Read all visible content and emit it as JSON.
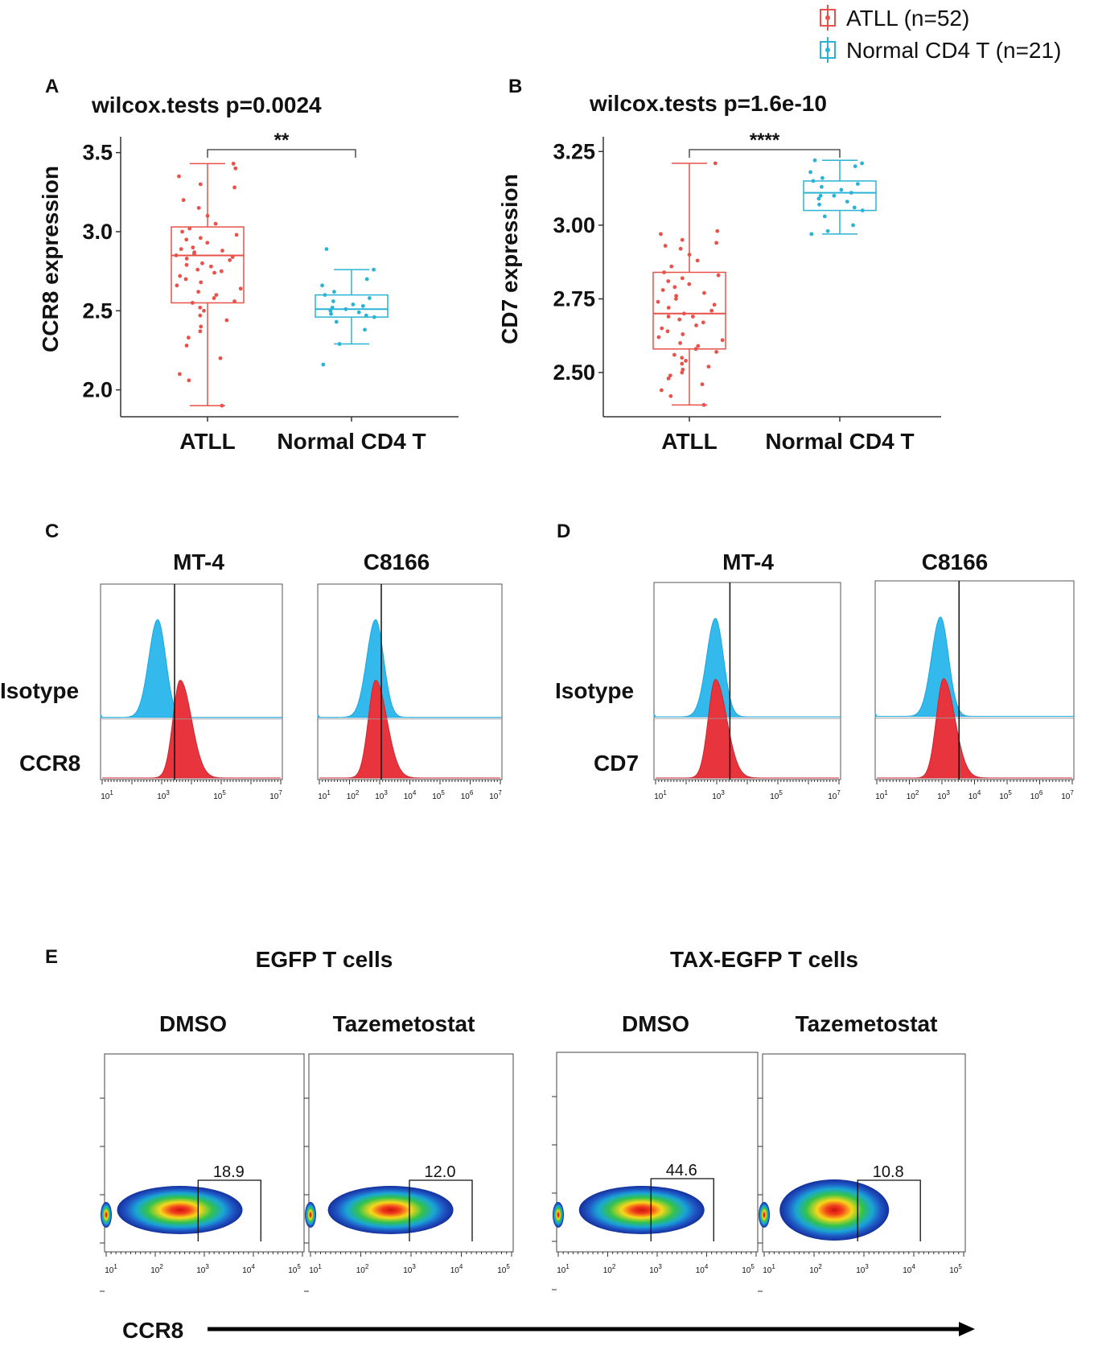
{
  "colors": {
    "atll": "#E8524A",
    "normal": "#2AB3D4",
    "iso": "#33B9EC",
    "ccr": "#E8343D",
    "axis": "#333333",
    "gate": "#111111"
  },
  "legend": [
    {
      "label": "ATLL (n=52)",
      "color": "#E8524A"
    },
    {
      "label": "Normal CD4 T (n=21)",
      "color": "#2AB3D4"
    }
  ],
  "panels": {
    "A": {
      "letter": "A",
      "title": "wilcox.tests p=0.0024",
      "ylabel": "CCR8 expression",
      "sig": "**"
    },
    "B": {
      "letter": "B",
      "title": "wilcox.tests p=1.6e-10",
      "ylabel": "CD7 expression",
      "sig": "****"
    },
    "C": {
      "letter": "C",
      "titles": [
        "MT-4",
        "C8166"
      ],
      "row_labels": [
        "Isotype",
        "CCR8"
      ]
    },
    "D": {
      "letter": "D",
      "titles": [
        "MT-4",
        "C8166"
      ],
      "row_labels": [
        "Isotype",
        "CD7"
      ]
    },
    "E": {
      "letter": "E",
      "groups": [
        "EGFP T cells",
        "TAX-EGFP T cells"
      ],
      "conditions": [
        "DMSO",
        "Tazemetostat",
        "DMSO",
        "Tazemetostat"
      ],
      "x_axis_label": "CCR8"
    }
  },
  "chart_data": [
    {
      "id": "A",
      "type": "box",
      "title": "wilcox.tests p=0.0024",
      "ylabel": "CCR8 expression",
      "xlabel": "",
      "categories": [
        "ATLL",
        "Normal CD4 T"
      ],
      "yticks": [
        "2.0",
        "2.5",
        "3.0",
        "3.5"
      ],
      "ylim": [
        1.83,
        3.6
      ],
      "boxes": [
        {
          "name": "ATLL",
          "min": 1.9,
          "q1": 2.55,
          "median": 2.85,
          "q3": 3.03,
          "max": 3.43
        },
        {
          "name": "Normal CD4 T",
          "min": 2.29,
          "q1": 2.46,
          "median": 2.51,
          "q3": 2.6,
          "max": 2.76
        }
      ],
      "points": [
        [
          3.43,
          3.4,
          3.35,
          3.3,
          3.28,
          3.2,
          3.15,
          3.1,
          3.05,
          3.02,
          3.0,
          2.98,
          2.96,
          2.95,
          2.93,
          2.9,
          2.89,
          2.88,
          2.87,
          2.86,
          2.85,
          2.84,
          2.83,
          2.82,
          2.8,
          2.79,
          2.78,
          2.76,
          2.75,
          2.74,
          2.72,
          2.7,
          2.68,
          2.66,
          2.64,
          2.62,
          2.6,
          2.58,
          2.56,
          2.55,
          2.52,
          2.5,
          2.47,
          2.44,
          2.4,
          2.37,
          2.33,
          2.28,
          2.2,
          2.1,
          2.06,
          1.9
        ],
        [
          2.89,
          2.76,
          2.7,
          2.66,
          2.62,
          2.6,
          2.58,
          2.56,
          2.54,
          2.53,
          2.52,
          2.51,
          2.5,
          2.49,
          2.48,
          2.47,
          2.46,
          2.43,
          2.38,
          2.29,
          2.16
        ]
      ],
      "significance": "**"
    },
    {
      "id": "B",
      "type": "box",
      "title": "wilcox.tests p=1.6e-10",
      "ylabel": "CD7 expression",
      "xlabel": "",
      "categories": [
        "ATLL",
        "Normal CD4 T"
      ],
      "yticks": [
        "2.50",
        "2.75",
        "3.00",
        "3.25"
      ],
      "ylim": [
        2.35,
        3.3
      ],
      "boxes": [
        {
          "name": "ATLL",
          "min": 2.39,
          "q1": 2.58,
          "median": 2.7,
          "q3": 2.84,
          "max": 3.21
        },
        {
          "name": "Normal CD4 T",
          "min": 2.97,
          "q1": 3.05,
          "median": 3.11,
          "q3": 3.15,
          "max": 3.22
        }
      ],
      "points": [
        [
          3.21,
          2.98,
          2.97,
          2.95,
          2.94,
          2.93,
          2.92,
          2.9,
          2.88,
          2.86,
          2.84,
          2.83,
          2.82,
          2.81,
          2.8,
          2.79,
          2.78,
          2.77,
          2.76,
          2.75,
          2.74,
          2.73,
          2.72,
          2.71,
          2.7,
          2.69,
          2.69,
          2.68,
          2.67,
          2.66,
          2.65,
          2.64,
          2.63,
          2.62,
          2.61,
          2.6,
          2.59,
          2.58,
          2.57,
          2.56,
          2.55,
          2.54,
          2.53,
          2.52,
          2.51,
          2.5,
          2.49,
          2.48,
          2.46,
          2.44,
          2.42,
          2.39
        ],
        [
          3.22,
          3.21,
          3.2,
          3.18,
          3.16,
          3.15,
          3.14,
          3.13,
          3.12,
          3.11,
          3.1,
          3.1,
          3.09,
          3.08,
          3.07,
          3.06,
          3.05,
          3.03,
          3.0,
          2.98,
          2.97
        ]
      ],
      "significance": "****"
    },
    {
      "id": "C",
      "type": "histogram-overlay",
      "series": [
        {
          "name": "Isotype",
          "color": "#33B9EC"
        },
        {
          "name": "CCR8",
          "color": "#E8343D"
        }
      ],
      "subplots": [
        {
          "title": "MT-4",
          "xticks": [
            "10^1",
            "10^3",
            "10^5",
            "10^7"
          ],
          "iso_peak_log": 2.8,
          "stain_peak_log": 3.6,
          "gate_log": 3.4
        },
        {
          "title": "C8166",
          "xticks": [
            "10^1",
            "10^2",
            "10^3",
            "10^4",
            "10^5",
            "10^6",
            "10^7"
          ],
          "iso_peak_log": 2.8,
          "stain_peak_log": 2.8,
          "gate_log": 3.0
        }
      ]
    },
    {
      "id": "D",
      "type": "histogram-overlay",
      "series": [
        {
          "name": "Isotype",
          "color": "#33B9EC"
        },
        {
          "name": "CD7",
          "color": "#E8343D"
        }
      ],
      "subplots": [
        {
          "title": "MT-4",
          "xticks": [
            "10^1",
            "10^3",
            "10^5",
            "10^7"
          ],
          "iso_peak_log": 2.9,
          "stain_peak_log": 2.9,
          "gate_log": 3.4
        },
        {
          "title": "C8166",
          "xticks": [
            "10^1",
            "10^2",
            "10^3",
            "10^4",
            "10^5",
            "10^6",
            "10^7"
          ],
          "iso_peak_log": 2.9,
          "stain_peak_log": 3.0,
          "gate_log": 3.5
        }
      ]
    },
    {
      "id": "E",
      "type": "density",
      "xlabel": "CCR8",
      "xticks": [
        "10^1",
        "10^2",
        "10^3",
        "10^4",
        "10^5"
      ],
      "plots": [
        {
          "group": "EGFP T cells",
          "condition": "DMSO",
          "percent": "18.9",
          "gate_log": 2.9,
          "center_log": 2.5
        },
        {
          "group": "EGFP T cells",
          "condition": "Tazemetostat",
          "percent": "12.0",
          "gate_log": 3.0,
          "center_log": 2.6
        },
        {
          "group": "TAX-EGFP T cells",
          "condition": "DMSO",
          "percent": "44.6",
          "gate_log": 2.9,
          "center_log": 2.7
        },
        {
          "group": "TAX-EGFP T cells",
          "condition": "Tazemetostat",
          "percent": "10.8",
          "gate_log": 2.9,
          "center_log": 2.4
        }
      ]
    }
  ]
}
